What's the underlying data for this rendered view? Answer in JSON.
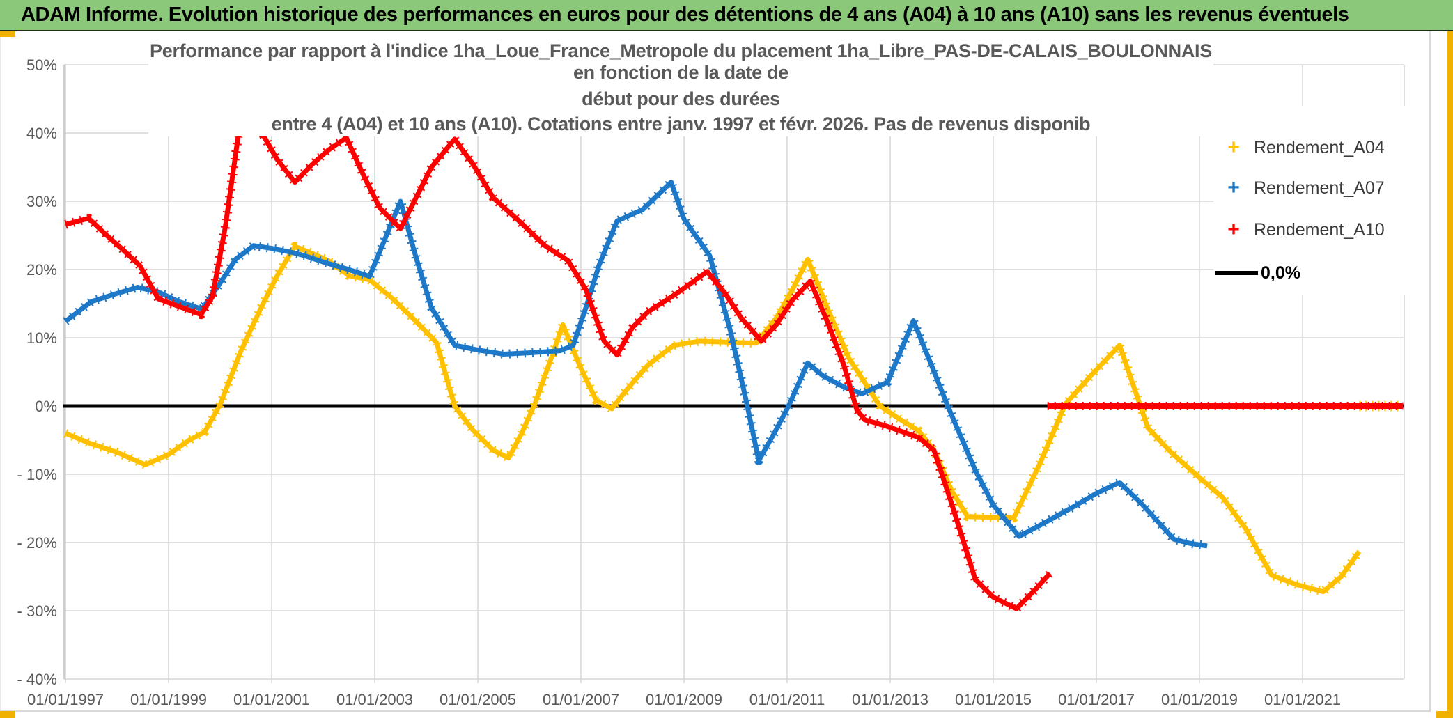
{
  "banner": {
    "title": "ADAM Informe. Evolution historique des performances en euros pour des détentions de 4 ans (A04) à 10 ans (A10) sans les revenus éventuels",
    "bg_color": "#8cc87a",
    "text_color": "#000000"
  },
  "frame": {
    "accent_color": "#f0b100",
    "border_color": "#d9d9d9"
  },
  "chart": {
    "title_lines": [
      "Performance par rapport à l'indice 1ha_Loue_France_Metropole  du placement 1ha_Libre_PAS-DE-CALAIS_BOULONNAIS en fonction de la date de",
      "début pour des durées",
      "entre 4 (A04) et 10 ans (A10). Cotations entre janv. 1997 et févr. 2026. Pas de revenus disponib"
    ],
    "legend": {
      "items": [
        {
          "label": "Rendement_A04",
          "marker": "+",
          "color": "#ffc000"
        },
        {
          "label": "Rendement_A07",
          "marker": "+",
          "color": "#1e78c8"
        },
        {
          "label": "Rendement_A10",
          "marker": "+",
          "color": "#ff0000"
        },
        {
          "label": "0,0%",
          "marker": "line",
          "color": "#000000"
        }
      ]
    },
    "axis": {
      "y_ticks": [
        {
          "label": "50%",
          "value": 50
        },
        {
          "label": "40%",
          "value": 40
        },
        {
          "label": "30%",
          "value": 30
        },
        {
          "label": "20%",
          "value": 20
        },
        {
          "label": "10%",
          "value": 10
        },
        {
          "label": "0%",
          "value": 0
        },
        {
          "label": "- 10%",
          "value": -10
        },
        {
          "label": "- 20%",
          "value": -20
        },
        {
          "label": "- 30%",
          "value": -30
        },
        {
          "label": "- 40%",
          "value": -40
        }
      ],
      "x_ticks": [
        {
          "label": "01/01/1997",
          "year": 1997
        },
        {
          "label": "01/01/1999",
          "year": 1999
        },
        {
          "label": "01/01/2001",
          "year": 2001
        },
        {
          "label": "01/01/2003",
          "year": 2003
        },
        {
          "label": "01/01/2005",
          "year": 2005
        },
        {
          "label": "01/01/2007",
          "year": 2007
        },
        {
          "label": "01/01/2009",
          "year": 2009
        },
        {
          "label": "01/01/2011",
          "year": 2011
        },
        {
          "label": "01/01/2013",
          "year": 2013
        },
        {
          "label": "01/01/2015",
          "year": 2015
        },
        {
          "label": "01/01/2017",
          "year": 2017
        },
        {
          "label": "01/01/2019",
          "year": 2019
        },
        {
          "label": "01/01/2021",
          "year": 2021
        }
      ]
    }
  },
  "chart_data": {
    "type": "line",
    "x_unit": "date de début (année)",
    "y_unit": "performance % par rapport à l'indice",
    "xlim": [
      1996.95,
      2022.97
    ],
    "ylim": [
      -40,
      50
    ],
    "grid": true,
    "legend_position": "top-right",
    "zero_line": {
      "color": "#000000",
      "from": 1996.95,
      "to": 2022.97
    },
    "series": [
      {
        "name": "Rendement_A04",
        "color": "#ffc000",
        "points": [
          [
            1997.0,
            -4.0
          ],
          [
            1997.45,
            -5.4
          ],
          [
            1998.0,
            -6.8
          ],
          [
            1998.55,
            -8.6
          ],
          [
            1999.0,
            -7.1
          ],
          [
            1999.4,
            -5.0
          ],
          [
            1999.7,
            -3.8
          ],
          [
            2000.0,
            0.2
          ],
          [
            2000.4,
            8.0
          ],
          [
            2000.8,
            14.5
          ],
          [
            2001.1,
            19.0
          ],
          [
            2001.45,
            23.4
          ],
          [
            2001.8,
            22.3
          ],
          [
            2002.1,
            21.3
          ],
          [
            2002.5,
            19.1
          ],
          [
            2002.9,
            18.5
          ],
          [
            2003.35,
            15.7
          ],
          [
            2003.8,
            12.4
          ],
          [
            2004.2,
            9.3
          ],
          [
            2004.55,
            0.0
          ],
          [
            2004.9,
            -3.5
          ],
          [
            2005.3,
            -6.5
          ],
          [
            2005.6,
            -7.6
          ],
          [
            2005.85,
            -4.0
          ],
          [
            2006.1,
            0.2
          ],
          [
            2006.4,
            6.5
          ],
          [
            2006.65,
            11.9
          ],
          [
            2007.0,
            5.5
          ],
          [
            2007.3,
            0.8
          ],
          [
            2007.6,
            -0.4
          ],
          [
            2007.9,
            2.5
          ],
          [
            2008.3,
            6.0
          ],
          [
            2008.8,
            8.9
          ],
          [
            2009.3,
            9.5
          ],
          [
            2010.4,
            9.2
          ],
          [
            2010.8,
            13.0
          ],
          [
            2011.1,
            17.0
          ],
          [
            2011.4,
            21.5
          ],
          [
            2011.8,
            14.0
          ],
          [
            2012.2,
            7.0
          ],
          [
            2012.8,
            0.0
          ],
          [
            2013.2,
            -2.0
          ],
          [
            2013.55,
            -3.6
          ],
          [
            2013.85,
            -6.5
          ],
          [
            2014.2,
            -12.5
          ],
          [
            2014.5,
            -16.2
          ],
          [
            2015.4,
            -16.4
          ],
          [
            2015.9,
            -8.5
          ],
          [
            2016.4,
            0.3
          ],
          [
            2016.9,
            4.5
          ],
          [
            2017.45,
            8.9
          ],
          [
            2018.0,
            -3.2
          ],
          [
            2018.45,
            -6.8
          ],
          [
            2019.0,
            -10.5
          ],
          [
            2019.45,
            -13.4
          ],
          [
            2019.9,
            -18.0
          ],
          [
            2020.4,
            -24.8
          ],
          [
            2020.9,
            -26.2
          ],
          [
            2021.4,
            -27.2
          ],
          [
            2021.75,
            -25.0
          ],
          [
            2022.1,
            -21.3
          ]
        ],
        "zero_segment": [
          2022.1,
          2022.95
        ]
      },
      {
        "name": "Rendement_A07",
        "color": "#1e78c8",
        "points": [
          [
            1997.0,
            12.4
          ],
          [
            1997.5,
            15.3
          ],
          [
            1998.0,
            16.5
          ],
          [
            1998.4,
            17.4
          ],
          [
            1998.8,
            16.7
          ],
          [
            1999.2,
            15.3
          ],
          [
            1999.65,
            14.2
          ],
          [
            2000.0,
            18.0
          ],
          [
            2000.3,
            21.5
          ],
          [
            2000.65,
            23.5
          ],
          [
            2001.0,
            23.1
          ],
          [
            2001.4,
            22.5
          ],
          [
            2001.65,
            22.0
          ],
          [
            2002.0,
            21.1
          ],
          [
            2002.45,
            20.1
          ],
          [
            2002.9,
            19.0
          ],
          [
            2003.2,
            24.5
          ],
          [
            2003.5,
            30.0
          ],
          [
            2003.8,
            21.8
          ],
          [
            2004.1,
            14.4
          ],
          [
            2004.55,
            8.9
          ],
          [
            2005.0,
            8.2
          ],
          [
            2005.5,
            7.6
          ],
          [
            2006.0,
            7.8
          ],
          [
            2006.6,
            8.1
          ],
          [
            2006.85,
            8.9
          ],
          [
            2007.1,
            14.5
          ],
          [
            2007.35,
            20.6
          ],
          [
            2007.7,
            27.1
          ],
          [
            2008.2,
            28.8
          ],
          [
            2008.75,
            32.8
          ],
          [
            2009.0,
            27.4
          ],
          [
            2009.5,
            22.0
          ],
          [
            2009.9,
            11.0
          ],
          [
            2010.2,
            1.0
          ],
          [
            2010.45,
            -8.0
          ],
          [
            2010.75,
            -4.0
          ],
          [
            2011.03,
            0.0
          ],
          [
            2011.4,
            6.3
          ],
          [
            2011.7,
            4.4
          ],
          [
            2012.1,
            2.8
          ],
          [
            2012.45,
            1.8
          ],
          [
            2012.95,
            3.5
          ],
          [
            2013.45,
            12.5
          ],
          [
            2013.8,
            6.0
          ],
          [
            2014.1,
            0.3
          ],
          [
            2014.65,
            -9.4
          ],
          [
            2015.0,
            -14.5
          ],
          [
            2015.5,
            -19.1
          ],
          [
            2015.9,
            -17.5
          ],
          [
            2016.5,
            -15.0
          ],
          [
            2017.0,
            -12.8
          ],
          [
            2017.45,
            -11.2
          ],
          [
            2017.9,
            -14.5
          ],
          [
            2018.5,
            -19.5
          ],
          [
            2018.8,
            -20.1
          ],
          [
            2019.15,
            -20.5
          ]
        ],
        "zero_segment": null
      },
      {
        "name": "Rendement_A10",
        "color": "#ff0000",
        "points": [
          [
            1997.0,
            26.6
          ],
          [
            1997.2,
            27.0
          ],
          [
            1997.45,
            27.5
          ],
          [
            1997.8,
            25.0
          ],
          [
            1998.1,
            23.0
          ],
          [
            1998.45,
            20.5
          ],
          [
            1998.8,
            15.7
          ],
          [
            1999.2,
            14.6
          ],
          [
            1999.63,
            13.4
          ],
          [
            1999.85,
            16.0
          ],
          [
            2000.1,
            26.2
          ],
          [
            2000.35,
            39.5
          ],
          [
            2000.6,
            46.0
          ],
          [
            2000.85,
            39.5
          ],
          [
            2001.1,
            36.2
          ],
          [
            2001.45,
            32.8
          ],
          [
            2001.8,
            35.5
          ],
          [
            2002.1,
            37.5
          ],
          [
            2002.45,
            39.3
          ],
          [
            2002.8,
            33.5
          ],
          [
            2003.1,
            29.0
          ],
          [
            2003.5,
            26.0
          ],
          [
            2003.8,
            30.5
          ],
          [
            2004.1,
            35.0
          ],
          [
            2004.55,
            39.1
          ],
          [
            2004.9,
            35.5
          ],
          [
            2005.3,
            30.5
          ],
          [
            2005.8,
            27.1
          ],
          [
            2006.3,
            23.5
          ],
          [
            2006.75,
            21.3
          ],
          [
            2007.1,
            17.0
          ],
          [
            2007.45,
            9.5
          ],
          [
            2007.7,
            7.5
          ],
          [
            2008.0,
            11.5
          ],
          [
            2008.3,
            13.8
          ],
          [
            2008.8,
            16.2
          ],
          [
            2009.1,
            17.8
          ],
          [
            2009.45,
            19.7
          ],
          [
            2009.8,
            16.5
          ],
          [
            2010.1,
            13.0
          ],
          [
            2010.5,
            9.5
          ],
          [
            2010.8,
            12.0
          ],
          [
            2011.1,
            15.5
          ],
          [
            2011.45,
            18.3
          ],
          [
            2011.8,
            12.0
          ],
          [
            2012.1,
            6.0
          ],
          [
            2012.35,
            -0.5
          ],
          [
            2012.5,
            -2.0
          ],
          [
            2012.95,
            -3.0
          ],
          [
            2013.55,
            -4.6
          ],
          [
            2013.85,
            -6.5
          ],
          [
            2014.2,
            -14.5
          ],
          [
            2014.65,
            -25.4
          ],
          [
            2015.0,
            -28.0
          ],
          [
            2015.45,
            -29.7
          ],
          [
            2015.8,
            -27.0
          ],
          [
            2016.1,
            -24.5
          ]
        ],
        "zero_segment": [
          2016.05,
          2022.95
        ]
      }
    ]
  }
}
